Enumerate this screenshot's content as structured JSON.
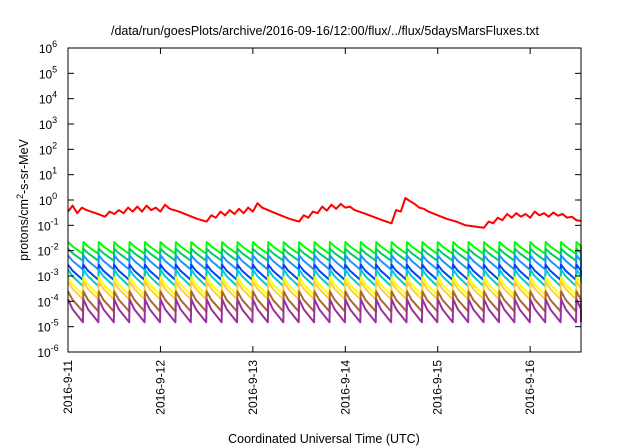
{
  "chart_data": {
    "type": "line",
    "title": "/data/run/goesPlots/archive/2016-09-16/12:00/flux/../flux/5daysMarsFluxes.txt",
    "xlabel": "Coordinated Universal Time (UTC)",
    "ylabel": {
      "pre": "protons/cm",
      "sup": "2",
      "post": "-s-sr-MeV"
    },
    "yscale": "log",
    "ylim": [
      1e-06,
      1000000.0
    ],
    "xlim": [
      0,
      5.55
    ],
    "y_ticks": [
      {
        "exp": -6,
        "label": "10",
        "sup": "-6"
      },
      {
        "exp": -5,
        "label": "10",
        "sup": "-5"
      },
      {
        "exp": -4,
        "label": "10",
        "sup": "-4"
      },
      {
        "exp": -3,
        "label": "10",
        "sup": "-3"
      },
      {
        "exp": -2,
        "label": "10",
        "sup": "-2"
      },
      {
        "exp": -1,
        "label": "10",
        "sup": "-1"
      },
      {
        "exp": 0,
        "label": "10",
        "sup": "0"
      },
      {
        "exp": 1,
        "label": "10",
        "sup": "1"
      },
      {
        "exp": 2,
        "label": "10",
        "sup": "2"
      },
      {
        "exp": 3,
        "label": "10",
        "sup": "3"
      },
      {
        "exp": 4,
        "label": "10",
        "sup": "4"
      },
      {
        "exp": 5,
        "label": "10",
        "sup": "5"
      },
      {
        "exp": 6,
        "label": "10",
        "sup": "6"
      }
    ],
    "x_ticks": [
      {
        "day": 0,
        "label": "2016-9-11"
      },
      {
        "day": 1,
        "label": "2016-9-12"
      },
      {
        "day": 2,
        "label": "2016-9-13"
      },
      {
        "day": 3,
        "label": "2016-9-14"
      },
      {
        "day": 4,
        "label": "2016-9-15"
      },
      {
        "day": 5,
        "label": "2016-9-16"
      }
    ],
    "sawtooth_period_days": 0.1667,
    "series": [
      {
        "color": "#ff0000",
        "x": [
          0.0,
          0.05,
          0.1,
          0.15,
          0.2,
          0.3,
          0.4,
          0.45,
          0.5,
          0.55,
          0.6,
          0.65,
          0.7,
          0.75,
          0.8,
          0.85,
          0.9,
          0.95,
          1.0,
          1.05,
          1.1,
          1.2,
          1.3,
          1.4,
          1.5,
          1.55,
          1.6,
          1.65,
          1.7,
          1.75,
          1.8,
          1.85,
          1.9,
          1.95,
          2.0,
          2.05,
          2.1,
          2.2,
          2.3,
          2.4,
          2.5,
          2.55,
          2.6,
          2.65,
          2.7,
          2.75,
          2.8,
          2.85,
          2.9,
          2.95,
          3.0,
          3.05,
          3.1,
          3.2,
          3.3,
          3.4,
          3.5,
          3.55,
          3.6,
          3.65,
          3.7,
          3.75,
          3.8,
          3.85,
          3.9,
          4.0,
          4.1,
          4.2,
          4.3,
          4.4,
          4.5,
          4.55,
          4.6,
          4.65,
          4.7,
          4.75,
          4.8,
          4.85,
          4.9,
          4.95,
          5.0,
          5.05,
          5.1,
          5.15,
          5.2,
          5.25,
          5.3,
          5.35,
          5.4,
          5.45,
          5.5,
          5.55
        ],
        "y": [
          0.35,
          0.6,
          0.3,
          0.5,
          0.4,
          0.3,
          0.22,
          0.35,
          0.28,
          0.4,
          0.3,
          0.5,
          0.35,
          0.55,
          0.35,
          0.6,
          0.4,
          0.5,
          0.35,
          0.65,
          0.45,
          0.35,
          0.25,
          0.18,
          0.14,
          0.25,
          0.2,
          0.35,
          0.25,
          0.4,
          0.28,
          0.45,
          0.3,
          0.5,
          0.35,
          0.75,
          0.5,
          0.35,
          0.25,
          0.18,
          0.14,
          0.25,
          0.2,
          0.35,
          0.3,
          0.55,
          0.38,
          0.65,
          0.45,
          0.7,
          0.5,
          0.55,
          0.4,
          0.3,
          0.22,
          0.16,
          0.12,
          0.4,
          0.35,
          1.2,
          0.9,
          0.7,
          0.5,
          0.45,
          0.35,
          0.25,
          0.18,
          0.14,
          0.1,
          0.09,
          0.08,
          0.14,
          0.12,
          0.2,
          0.16,
          0.28,
          0.2,
          0.3,
          0.22,
          0.28,
          0.2,
          0.35,
          0.25,
          0.3,
          0.22,
          0.32,
          0.24,
          0.28,
          0.2,
          0.22,
          0.16,
          0.15
        ]
      },
      {
        "color": "#00ff00",
        "peak": 0.022,
        "trough": 0.0075
      },
      {
        "color": "#00cc66",
        "peak": 0.012,
        "trough": 0.004
      },
      {
        "color": "#1e90ff",
        "peak": 0.0065,
        "trough": 0.0018
      },
      {
        "color": "#0040ff",
        "peak": 0.0028,
        "trough": 0.0007
      },
      {
        "color": "#00cccc",
        "peak": 0.0018,
        "trough": 0.0004
      },
      {
        "color": "#ffff00",
        "peak": 0.0009,
        "trough": 0.00018
      },
      {
        "color": "#ffcc44",
        "peak": 0.0006,
        "trough": 0.00012
      },
      {
        "color": "#aa6633",
        "peak": 0.00025,
        "trough": 4e-05
      },
      {
        "color": "#993399",
        "peak": 0.00012,
        "trough": 1.5e-05
      }
    ]
  }
}
